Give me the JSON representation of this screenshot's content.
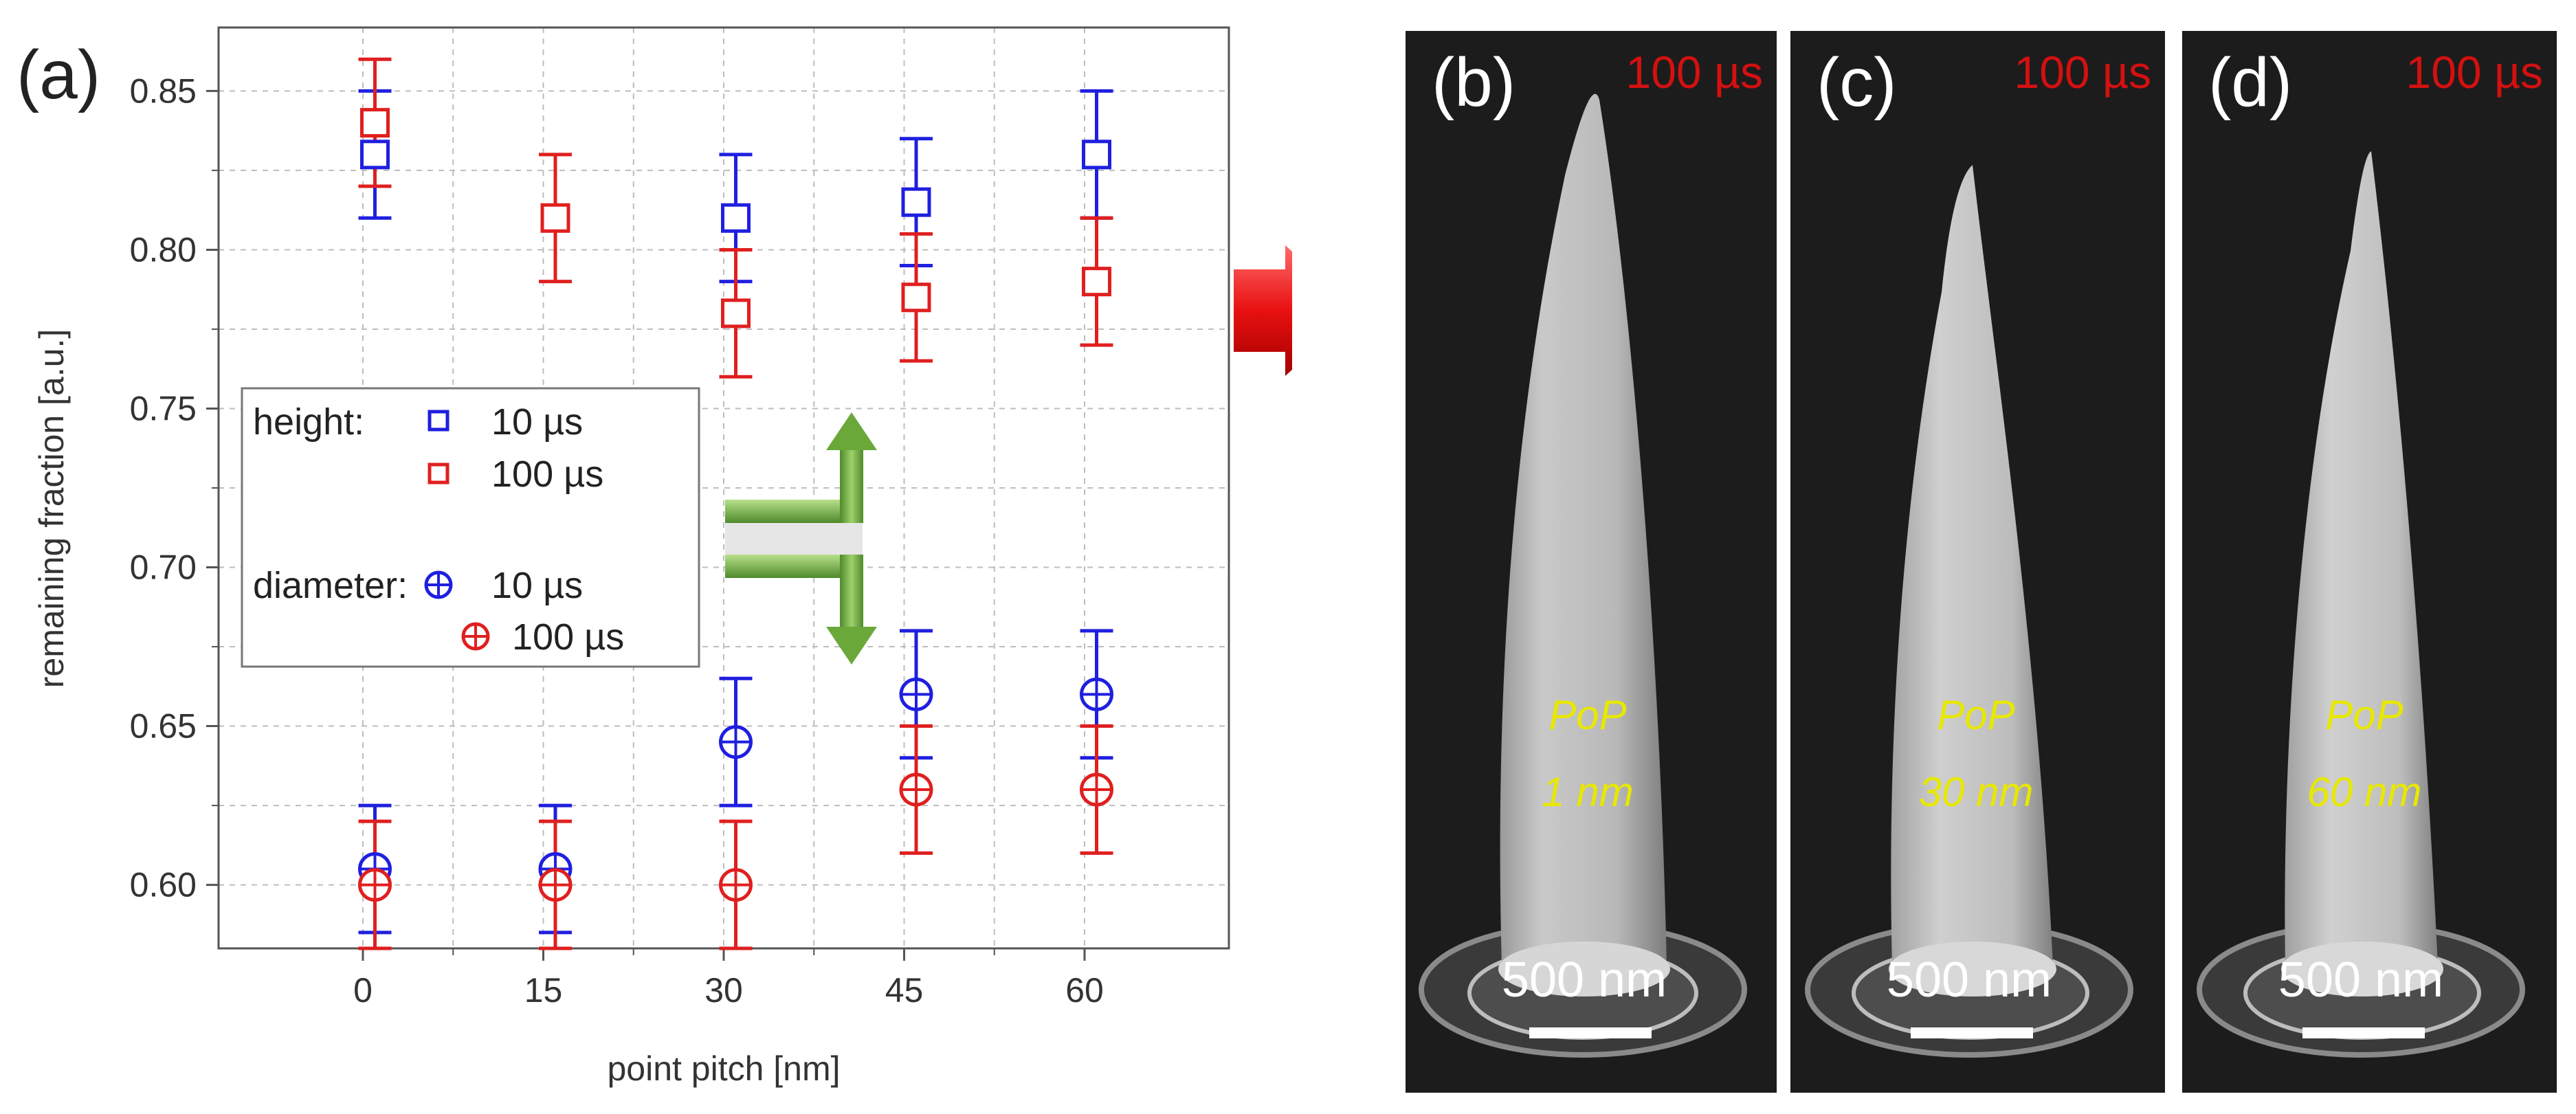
{
  "chart_data": {
    "type": "scatter",
    "panel_label": "(a)",
    "xlabel": "point pitch [nm]",
    "ylabel": "remaining fraction [a.u.]",
    "xlim": [
      -12,
      72
    ],
    "ylim": [
      0.58,
      0.87
    ],
    "xticks": [
      "0",
      "15",
      "30",
      "45",
      "60"
    ],
    "xtick_values": [
      0,
      15,
      30,
      45,
      60
    ],
    "yticks": [
      "0.60",
      "0.65",
      "0.70",
      "0.75",
      "0.80",
      "0.85"
    ],
    "ytick_values": [
      0.6,
      0.65,
      0.7,
      0.75,
      0.8,
      0.85
    ],
    "grid": true,
    "colors": {
      "blue": "#1f1fe0",
      "red": "#e01f1f"
    },
    "series": [
      {
        "name": "height 10 µs",
        "group": "height",
        "marker": "square",
        "color": "#1f1fe0",
        "points": [
          {
            "x": 0,
            "y": 0.83,
            "yerr_low": 0.81,
            "yerr_high": 0.85
          },
          {
            "x": 30,
            "y": 0.81,
            "yerr_low": 0.79,
            "yerr_high": 0.83
          },
          {
            "x": 45,
            "y": 0.815,
            "yerr_low": 0.795,
            "yerr_high": 0.835
          },
          {
            "x": 60,
            "y": 0.83,
            "yerr_low": 0.81,
            "yerr_high": 0.85
          }
        ]
      },
      {
        "name": "height 100 µs",
        "group": "height",
        "marker": "square",
        "color": "#e01f1f",
        "points": [
          {
            "x": 0,
            "y": 0.84,
            "yerr_low": 0.82,
            "yerr_high": 0.86
          },
          {
            "x": 15,
            "y": 0.81,
            "yerr_low": 0.79,
            "yerr_high": 0.83
          },
          {
            "x": 30,
            "y": 0.78,
            "yerr_low": 0.76,
            "yerr_high": 0.8
          },
          {
            "x": 45,
            "y": 0.785,
            "yerr_low": 0.765,
            "yerr_high": 0.805
          },
          {
            "x": 60,
            "y": 0.79,
            "yerr_low": 0.77,
            "yerr_high": 0.81
          }
        ]
      },
      {
        "name": "diameter 10 µs",
        "group": "diameter",
        "marker": "circle-cross",
        "color": "#1f1fe0",
        "points": [
          {
            "x": 0,
            "y": 0.605,
            "yerr_low": 0.585,
            "yerr_high": 0.625
          },
          {
            "x": 15,
            "y": 0.605,
            "yerr_low": 0.585,
            "yerr_high": 0.625
          },
          {
            "x": 30,
            "y": 0.645,
            "yerr_low": 0.625,
            "yerr_high": 0.665
          },
          {
            "x": 45,
            "y": 0.66,
            "yerr_low": 0.64,
            "yerr_high": 0.68
          },
          {
            "x": 60,
            "y": 0.66,
            "yerr_low": 0.64,
            "yerr_high": 0.68
          }
        ]
      },
      {
        "name": "diameter 100 µs",
        "group": "diameter",
        "marker": "circle-cross",
        "color": "#e01f1f",
        "points": [
          {
            "x": 0,
            "y": 0.6,
            "yerr_low": 0.58,
            "yerr_high": 0.62
          },
          {
            "x": 15,
            "y": 0.6,
            "yerr_low": 0.58,
            "yerr_high": 0.62
          },
          {
            "x": 30,
            "y": 0.6,
            "yerr_low": 0.58,
            "yerr_high": 0.62
          },
          {
            "x": 45,
            "y": 0.63,
            "yerr_low": 0.61,
            "yerr_high": 0.65
          },
          {
            "x": 60,
            "y": 0.63,
            "yerr_low": 0.61,
            "yerr_high": 0.65
          }
        ]
      }
    ],
    "legend": {
      "placement": "left-middle",
      "height_label": "height:",
      "diameter_label": "diameter:",
      "entry_10": "10 µs",
      "entry_100": "100 µs"
    }
  },
  "sem_panels": [
    {
      "label": "(b)",
      "dwell": "100 µs",
      "pop_line1": "PoP",
      "pop_line2": "1 nm",
      "scale": "500 nm"
    },
    {
      "label": "(c)",
      "dwell": "100 µs",
      "pop_line1": "PoP",
      "pop_line2": "30 nm",
      "scale": "500 nm"
    },
    {
      "label": "(d)",
      "dwell": "100 µs",
      "pop_line1": "PoP",
      "pop_line2": "60 nm",
      "scale": "500 nm"
    }
  ]
}
